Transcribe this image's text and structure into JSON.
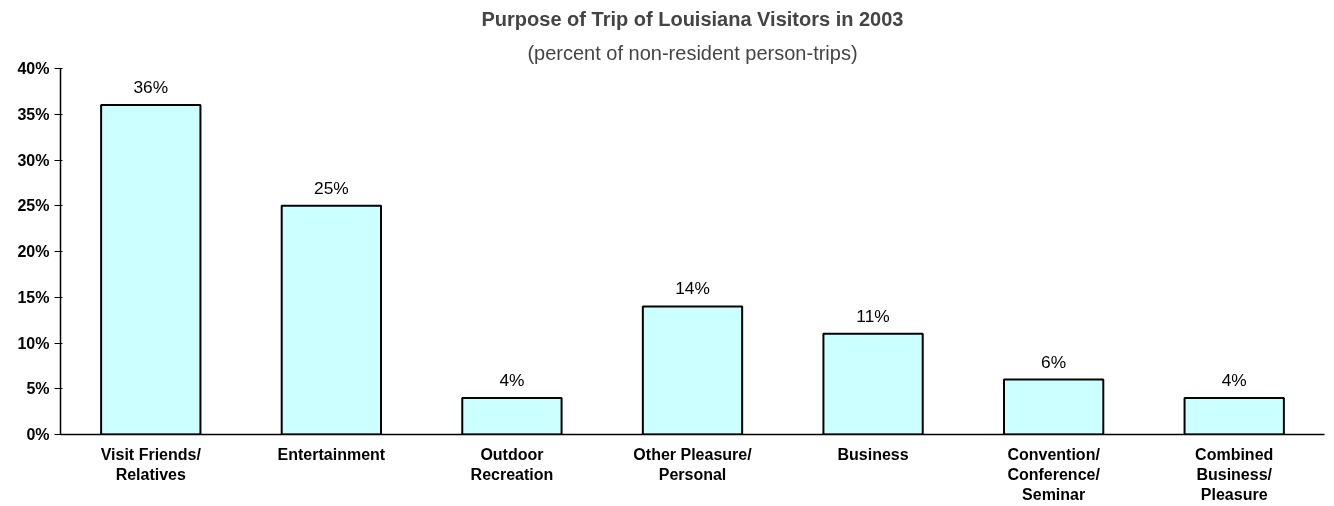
{
  "chart_data": {
    "type": "bar",
    "title": "Purpose of Trip of Louisiana Visitors in 2003",
    "subtitle": "(percent of non-resident person-trips)",
    "categories": [
      "Visit Friends/ Relatives",
      "Entertainment",
      "Outdoor Recreation",
      "Other Pleasure/ Personal",
      "Business",
      "Convention/ Conference/ Seminar",
      "Combined Business/ Pleasure"
    ],
    "values": [
      36,
      25,
      4,
      14,
      11,
      6,
      4
    ],
    "value_labels": [
      "36%",
      "25%",
      "4%",
      "14%",
      "11%",
      "6%",
      "4%"
    ],
    "color": "#ccffff",
    "ylim": [
      0,
      40
    ],
    "yticks": [
      {
        "value": 0,
        "label": "0%"
      },
      {
        "value": 5,
        "label": "5%"
      },
      {
        "value": 10,
        "label": "10%"
      },
      {
        "value": 15,
        "label": "15%"
      },
      {
        "value": 20,
        "label": "20%"
      },
      {
        "value": 25,
        "label": "25%"
      },
      {
        "value": 30,
        "label": "30%"
      },
      {
        "value": 35,
        "label": "35%"
      },
      {
        "value": 40,
        "label": "40%"
      }
    ],
    "grid": false
  }
}
